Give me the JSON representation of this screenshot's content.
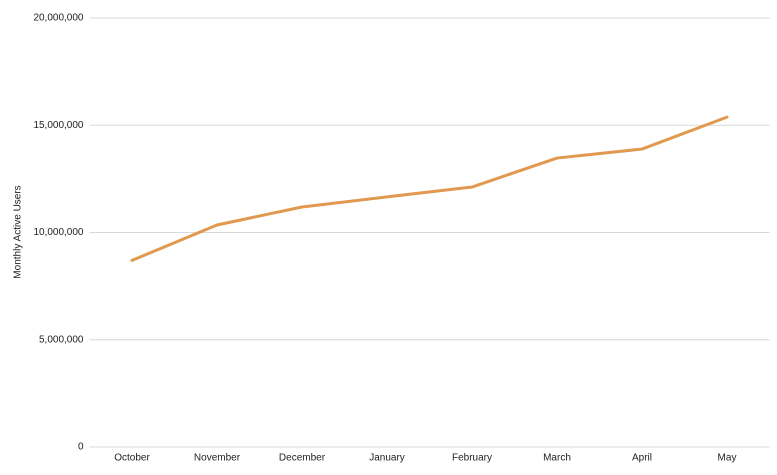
{
  "chart_data": {
    "type": "line",
    "y_label": "Monthly Active Users",
    "categories": [
      "October",
      "November",
      "December",
      "January",
      "February",
      "March",
      "April",
      "May"
    ],
    "values": [
      8700000,
      10350000,
      11190000,
      11660000,
      12120000,
      13470000,
      13890000,
      15380000
    ],
    "color": "#e0994f",
    "ylim": [
      0,
      20000000
    ],
    "yticks": [
      0,
      {
        "value": 5000000,
        "label": "5,000,000"
      },
      {
        "value": 10000000,
        "label": "10,000,000"
      },
      {
        "value": 15000000,
        "label": "15,000,000"
      },
      {
        "value": 20000000,
        "label": "20,000,000"
      }
    ],
    "grid": true
  }
}
